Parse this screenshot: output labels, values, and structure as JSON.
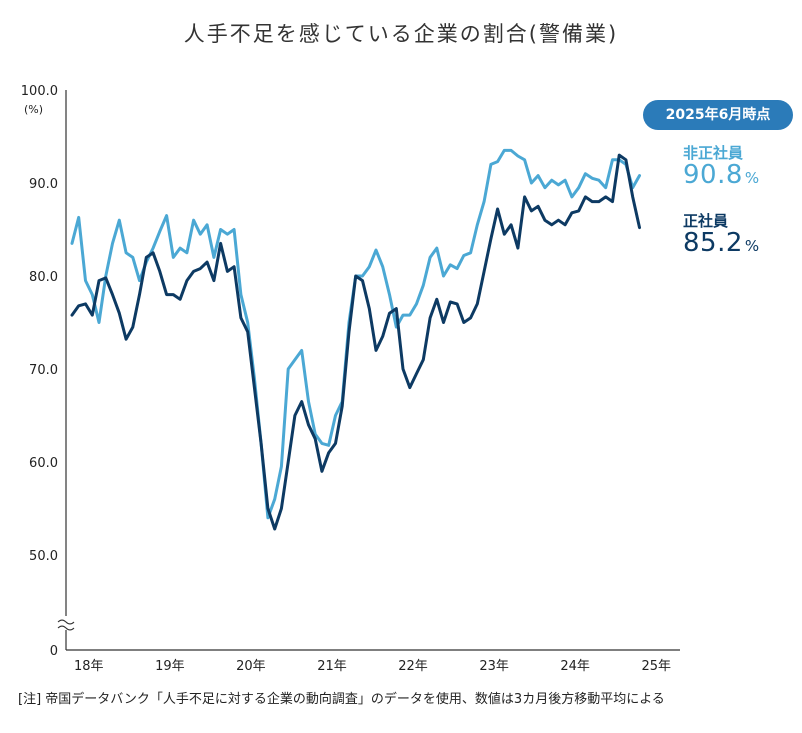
{
  "title": "人手不足を感じている企業の割合(警備業)",
  "chart_data": {
    "type": "line",
    "title": "人手不足を感じている企業の割合(警備業)",
    "ylabel_unit": "(%)",
    "y_ticks": [
      "100.0",
      "90.0",
      "80.0",
      "70.0",
      "60.0",
      "50.0",
      "0"
    ],
    "ylim": [
      50,
      100
    ],
    "y_axis_break": true,
    "x_ticks": [
      "18年",
      "19年",
      "20年",
      "21年",
      "22年",
      "23年",
      "24年",
      "25年"
    ],
    "x_range": [
      2018.0,
      2025.5
    ],
    "grid": false,
    "series": [
      {
        "name": "非正社員",
        "color": "#4ba8d4",
        "points": [
          [
            2018.0,
            83.5
          ],
          [
            2018.083,
            86.3
          ],
          [
            2018.167,
            79.5
          ],
          [
            2018.25,
            78.0
          ],
          [
            2018.333,
            75.0
          ],
          [
            2018.417,
            80.0
          ],
          [
            2018.5,
            83.5
          ],
          [
            2018.583,
            86.0
          ],
          [
            2018.667,
            82.5
          ],
          [
            2018.75,
            82.0
          ],
          [
            2018.833,
            79.5
          ],
          [
            2018.917,
            81.5
          ],
          [
            2019.0,
            83.0
          ],
          [
            2019.083,
            84.8
          ],
          [
            2019.167,
            86.5
          ],
          [
            2019.25,
            82.0
          ],
          [
            2019.333,
            83.0
          ],
          [
            2019.417,
            82.5
          ],
          [
            2019.5,
            86.0
          ],
          [
            2019.583,
            84.5
          ],
          [
            2019.667,
            85.5
          ],
          [
            2019.75,
            82.0
          ],
          [
            2019.833,
            85.0
          ],
          [
            2019.917,
            84.5
          ],
          [
            2020.0,
            85.0
          ],
          [
            2020.083,
            78.0
          ],
          [
            2020.167,
            75.0
          ],
          [
            2020.25,
            69.0
          ],
          [
            2020.333,
            62.0
          ],
          [
            2020.417,
            54.0
          ],
          [
            2020.5,
            56.0
          ],
          [
            2020.583,
            59.5
          ],
          [
            2020.667,
            70.0
          ],
          [
            2020.75,
            71.0
          ],
          [
            2020.833,
            72.0
          ],
          [
            2020.917,
            66.5
          ],
          [
            2021.0,
            63.0
          ],
          [
            2021.083,
            62.0
          ],
          [
            2021.167,
            61.8
          ],
          [
            2021.25,
            65.0
          ],
          [
            2021.333,
            66.5
          ],
          [
            2021.417,
            75.0
          ],
          [
            2021.5,
            80.0
          ],
          [
            2021.583,
            80.0
          ],
          [
            2021.667,
            81.0
          ],
          [
            2021.75,
            82.8
          ],
          [
            2021.833,
            81.0
          ],
          [
            2021.917,
            78.0
          ],
          [
            2022.0,
            74.5
          ],
          [
            2022.083,
            75.8
          ],
          [
            2022.167,
            75.8
          ],
          [
            2022.25,
            77.0
          ],
          [
            2022.333,
            79.0
          ],
          [
            2022.417,
            82.0
          ],
          [
            2022.5,
            83.0
          ],
          [
            2022.583,
            80.0
          ],
          [
            2022.667,
            81.2
          ],
          [
            2022.75,
            80.8
          ],
          [
            2022.833,
            82.2
          ],
          [
            2022.917,
            82.5
          ],
          [
            2023.0,
            85.5
          ],
          [
            2023.083,
            88.0
          ],
          [
            2023.167,
            92.0
          ],
          [
            2023.25,
            92.3
          ],
          [
            2023.333,
            93.5
          ],
          [
            2023.417,
            93.5
          ],
          [
            2023.5,
            92.9
          ],
          [
            2023.583,
            92.5
          ],
          [
            2023.667,
            90.0
          ],
          [
            2023.75,
            90.8
          ],
          [
            2023.833,
            89.5
          ],
          [
            2023.917,
            90.3
          ],
          [
            2024.0,
            89.8
          ],
          [
            2024.083,
            90.3
          ],
          [
            2024.167,
            88.5
          ],
          [
            2024.25,
            89.5
          ],
          [
            2024.333,
            91.0
          ],
          [
            2024.417,
            90.5
          ],
          [
            2024.5,
            90.3
          ],
          [
            2024.583,
            89.5
          ],
          [
            2024.667,
            92.5
          ],
          [
            2024.75,
            92.5
          ],
          [
            2024.833,
            92.0
          ],
          [
            2024.917,
            89.5
          ],
          [
            2025.0,
            90.8
          ]
        ]
      },
      {
        "name": "正社員",
        "color": "#0d3a63",
        "points": [
          [
            2018.0,
            75.8
          ],
          [
            2018.083,
            76.8
          ],
          [
            2018.167,
            77.0
          ],
          [
            2018.25,
            75.8
          ],
          [
            2018.333,
            79.5
          ],
          [
            2018.417,
            79.8
          ],
          [
            2018.5,
            78.0
          ],
          [
            2018.583,
            76.0
          ],
          [
            2018.667,
            73.2
          ],
          [
            2018.75,
            74.5
          ],
          [
            2018.833,
            78.0
          ],
          [
            2018.917,
            82.0
          ],
          [
            2019.0,
            82.5
          ],
          [
            2019.083,
            80.5
          ],
          [
            2019.167,
            78.0
          ],
          [
            2019.25,
            78.0
          ],
          [
            2019.333,
            77.5
          ],
          [
            2019.417,
            79.5
          ],
          [
            2019.5,
            80.5
          ],
          [
            2019.583,
            80.8
          ],
          [
            2019.667,
            81.5
          ],
          [
            2019.75,
            79.5
          ],
          [
            2019.833,
            83.5
          ],
          [
            2019.917,
            80.5
          ],
          [
            2020.0,
            81.0
          ],
          [
            2020.083,
            75.5
          ],
          [
            2020.167,
            74.0
          ],
          [
            2020.25,
            68.0
          ],
          [
            2020.333,
            62.0
          ],
          [
            2020.417,
            55.0
          ],
          [
            2020.5,
            52.8
          ],
          [
            2020.583,
            55.0
          ],
          [
            2020.667,
            60.0
          ],
          [
            2020.75,
            65.0
          ],
          [
            2020.833,
            66.5
          ],
          [
            2020.917,
            64.0
          ],
          [
            2021.0,
            62.5
          ],
          [
            2021.083,
            59.0
          ],
          [
            2021.167,
            61.0
          ],
          [
            2021.25,
            62.0
          ],
          [
            2021.333,
            66.0
          ],
          [
            2021.417,
            74.0
          ],
          [
            2021.5,
            80.0
          ],
          [
            2021.583,
            79.5
          ],
          [
            2021.667,
            76.5
          ],
          [
            2021.75,
            72.0
          ],
          [
            2021.833,
            73.5
          ],
          [
            2021.917,
            76.0
          ],
          [
            2022.0,
            76.5
          ],
          [
            2022.083,
            70.0
          ],
          [
            2022.167,
            68.0
          ],
          [
            2022.25,
            69.5
          ],
          [
            2022.333,
            71.0
          ],
          [
            2022.417,
            75.5
          ],
          [
            2022.5,
            77.5
          ],
          [
            2022.583,
            75.0
          ],
          [
            2022.667,
            77.2
          ],
          [
            2022.75,
            77.0
          ],
          [
            2022.833,
            75.0
          ],
          [
            2022.917,
            75.5
          ],
          [
            2023.0,
            77.0
          ],
          [
            2023.083,
            80.5
          ],
          [
            2023.167,
            84.0
          ],
          [
            2023.25,
            87.2
          ],
          [
            2023.333,
            84.5
          ],
          [
            2023.417,
            85.5
          ],
          [
            2023.5,
            83.0
          ],
          [
            2023.583,
            88.5
          ],
          [
            2023.667,
            87.0
          ],
          [
            2023.75,
            87.5
          ],
          [
            2023.833,
            86.0
          ],
          [
            2023.917,
            85.5
          ],
          [
            2024.0,
            86.0
          ],
          [
            2024.083,
            85.5
          ],
          [
            2024.167,
            86.8
          ],
          [
            2024.25,
            87.0
          ],
          [
            2024.333,
            88.5
          ],
          [
            2024.417,
            88.0
          ],
          [
            2024.5,
            88.0
          ],
          [
            2024.583,
            88.5
          ],
          [
            2024.667,
            88.0
          ],
          [
            2024.75,
            93.0
          ],
          [
            2024.833,
            92.5
          ],
          [
            2024.917,
            88.5
          ],
          [
            2025.0,
            85.2
          ]
        ]
      }
    ],
    "badge": "2025年6月時点",
    "labels": [
      {
        "name": "非正社員",
        "value": "90.8",
        "unit": "%"
      },
      {
        "name": "正社員",
        "value": "85.2",
        "unit": "%"
      }
    ]
  },
  "note": "[注] 帝国データバンク「人手不足に対する企業の動向調査」のデータを使用、数値は3カ月後方移動平均による"
}
